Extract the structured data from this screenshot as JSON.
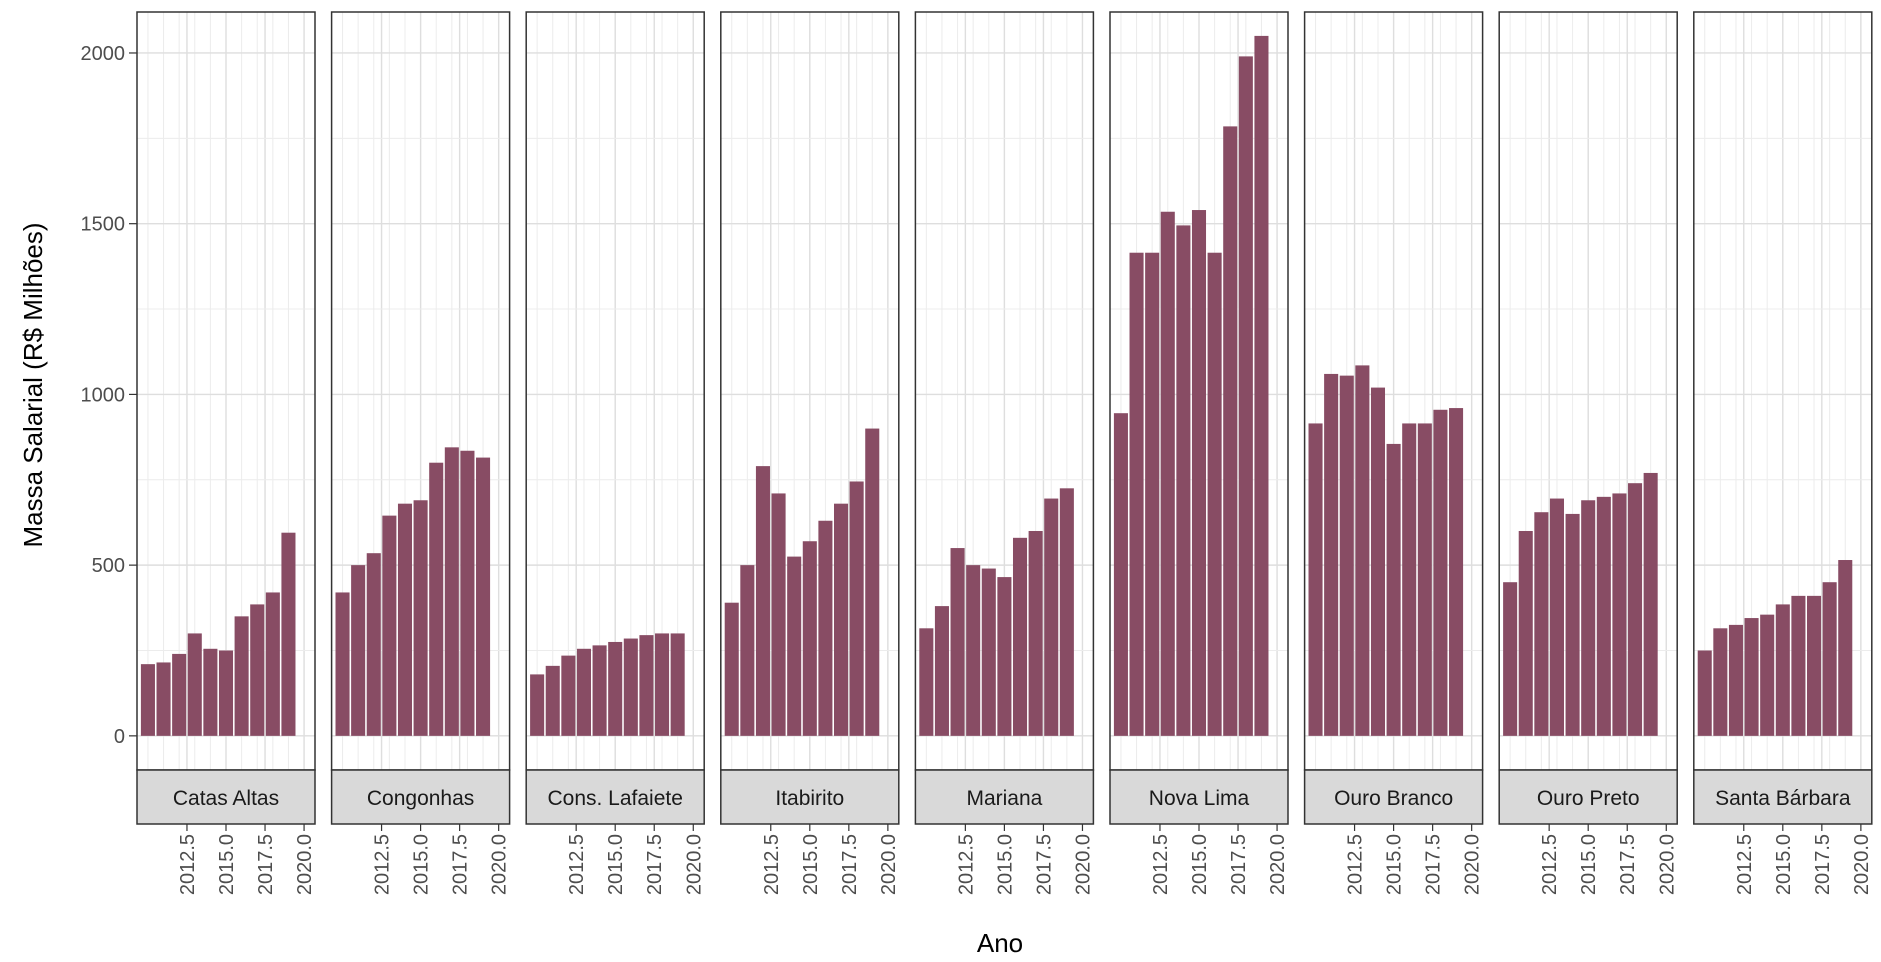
{
  "chart_data": {
    "type": "bar",
    "faceted": true,
    "xlabel": "Ano",
    "ylabel": "Massa Salarial (R$ Milhões)",
    "ylim": [
      -100,
      2120
    ],
    "yticks": [
      0,
      500,
      1000,
      1500,
      2000
    ],
    "xlim": [
      2009.3,
      2020.7
    ],
    "xticks": [
      2012.5,
      2015.0,
      2017.5,
      2020.0
    ],
    "xtick_labels": [
      "2012.5",
      "2015.0",
      "2017.5",
      "2020.0"
    ],
    "x": [
      2010,
      2011,
      2012,
      2013,
      2014,
      2015,
      2016,
      2017,
      2018,
      2019,
      2020
    ],
    "grid": true,
    "bar_color": "#884c64",
    "strip_fill": "#d9d9d9",
    "panels": [
      {
        "name": "Catas Altas",
        "values": [
          210,
          215,
          240,
          300,
          255,
          250,
          350,
          385,
          420,
          595,
          null
        ]
      },
      {
        "name": "Congonhas",
        "values": [
          420,
          500,
          535,
          645,
          680,
          690,
          800,
          845,
          835,
          815,
          null
        ]
      },
      {
        "name": "Cons. Lafaiete",
        "values": [
          180,
          205,
          235,
          255,
          265,
          275,
          285,
          295,
          300,
          300,
          null
        ]
      },
      {
        "name": "Itabirito",
        "values": [
          390,
          500,
          790,
          710,
          525,
          570,
          630,
          680,
          745,
          900,
          null
        ]
      },
      {
        "name": "Mariana",
        "values": [
          315,
          380,
          550,
          500,
          490,
          465,
          580,
          600,
          695,
          725,
          null
        ]
      },
      {
        "name": "Nova Lima",
        "values": [
          945,
          1415,
          1415,
          1535,
          1495,
          1540,
          1415,
          1785,
          1990,
          2050,
          null
        ]
      },
      {
        "name": "Ouro Branco",
        "values": [
          915,
          1060,
          1055,
          1085,
          1020,
          855,
          915,
          915,
          955,
          960,
          null
        ]
      },
      {
        "name": "Ouro Preto",
        "values": [
          450,
          600,
          655,
          695,
          650,
          690,
          700,
          710,
          740,
          770,
          null
        ]
      },
      {
        "name": "Santa Bárbara",
        "values": [
          250,
          315,
          325,
          345,
          355,
          385,
          410,
          410,
          450,
          515,
          null
        ]
      }
    ]
  }
}
